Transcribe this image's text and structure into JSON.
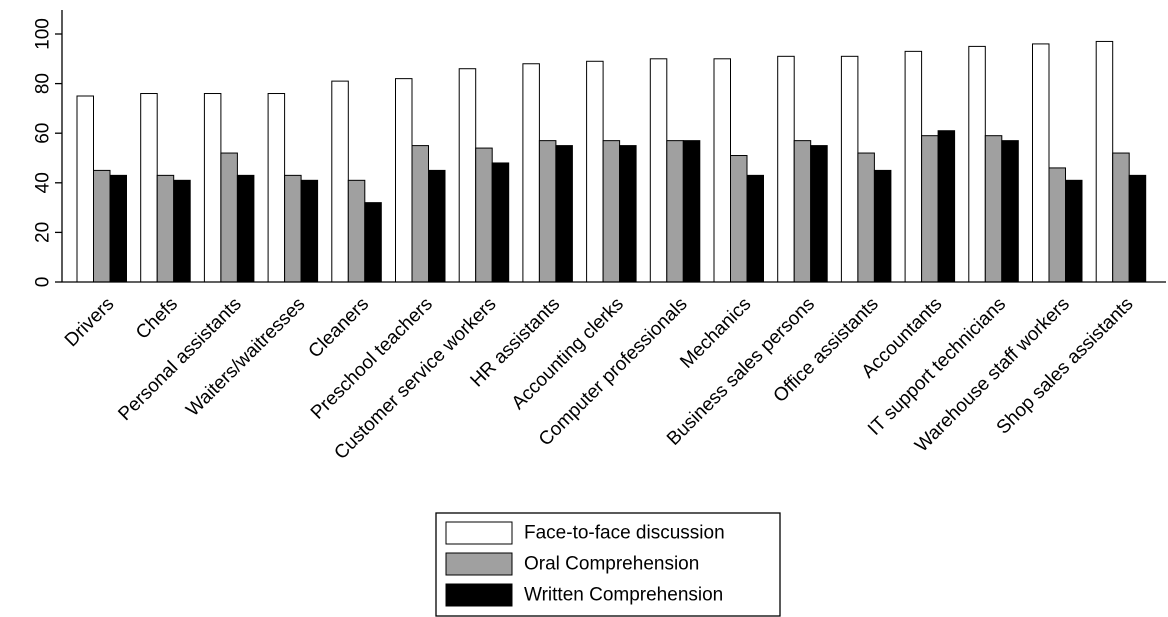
{
  "chart_data": {
    "type": "bar",
    "title": "",
    "xlabel": "",
    "ylabel": "",
    "ylim": [
      0,
      100
    ],
    "yticks": [
      0,
      20,
      40,
      60,
      80,
      100
    ],
    "grid": false,
    "legend_position": "bottom-center",
    "categories": [
      "Drivers",
      "Chefs",
      "Personal assistants",
      "Waiters/waitresses",
      "Cleaners",
      "Preschool teachers",
      "Customer service workers",
      "HR assistants",
      "Accounting clerks",
      "Computer professionals",
      "Mechanics",
      "Business sales persons",
      "Office assistants",
      "Accountants",
      "IT support technicians",
      "Warehouse staff workers",
      "Shop sales assistants"
    ],
    "series": [
      {
        "name": "Face-to-face discussion",
        "color": "#ffffff",
        "values": [
          75,
          76,
          76,
          76,
          81,
          82,
          86,
          88,
          89,
          90,
          90,
          91,
          91,
          93,
          95,
          96,
          97
        ]
      },
      {
        "name": "Oral Comprehension",
        "color": "#a0a0a0",
        "values": [
          45,
          43,
          52,
          43,
          41,
          55,
          54,
          57,
          57,
          57,
          51,
          57,
          52,
          59,
          59,
          46,
          52
        ]
      },
      {
        "name": "Written Comprehension",
        "color": "#000000",
        "values": [
          43,
          41,
          43,
          41,
          32,
          45,
          48,
          55,
          55,
          57,
          43,
          55,
          45,
          61,
          57,
          41,
          43
        ]
      }
    ]
  }
}
